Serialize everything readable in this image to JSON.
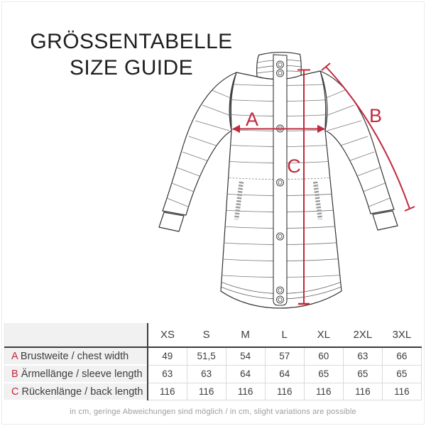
{
  "page": {
    "title_line1": "GRÖSSENTABELLE",
    "title_line2": "SIZE GUIDE",
    "footnote": "in cm, geringe Abweichungen sind möglich / in cm, slight variations are possible"
  },
  "diagram": {
    "type": "garment-measurement-diagram",
    "garment": "quilted coat front view",
    "accent_color": "#c2293e",
    "markers": {
      "a": "A",
      "b": "B",
      "c": "C"
    }
  },
  "size_table": {
    "columns": [
      "XS",
      "S",
      "M",
      "L",
      "XL",
      "2XL",
      "3XL"
    ],
    "rows": [
      {
        "key": "A",
        "label": "Brustweite / chest width",
        "values": [
          "49",
          "51,5",
          "54",
          "57",
          "60",
          "63",
          "66"
        ]
      },
      {
        "key": "B",
        "label": "Ärmellänge / sleeve length",
        "values": [
          "63",
          "63",
          "64",
          "64",
          "65",
          "65",
          "65"
        ]
      },
      {
        "key": "C",
        "label": "Rückenlänge / back length",
        "values": [
          "116",
          "116",
          "116",
          "116",
          "116",
          "116",
          "116"
        ]
      }
    ]
  }
}
